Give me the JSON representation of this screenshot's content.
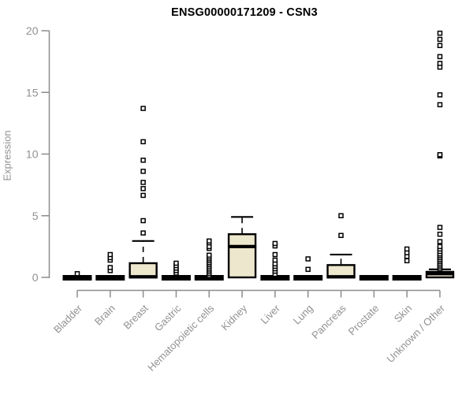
{
  "chart_data": {
    "type": "boxplot",
    "title": "ENSG00000171209 - CSN3",
    "ylabel": "Expression",
    "ylim": [
      0,
      20
    ],
    "yticks": [
      0,
      5,
      10,
      15,
      20
    ],
    "grid": false,
    "legend": "none",
    "categories": [
      "Bladder",
      "Brain",
      "Breast",
      "Gastric",
      "Hematopoietic cells",
      "Kidney",
      "Liver",
      "Lung",
      "Pancreas",
      "Prostate",
      "Skin",
      "Unknown / Other"
    ],
    "boxes": [
      {
        "category": "Bladder",
        "q1": 0,
        "median": 0,
        "q3": 0.05,
        "whisker_low": 0,
        "whisker_high": 0.05,
        "outliers": [
          0.3
        ]
      },
      {
        "category": "Brain",
        "q1": 0,
        "median": 0,
        "q3": 0.05,
        "whisker_low": 0,
        "whisker_high": 0.05,
        "outliers": [
          0.55,
          0.8,
          1.4,
          1.6,
          1.85
        ]
      },
      {
        "category": "Breast",
        "q1": 0,
        "median": 0.05,
        "q3": 1.15,
        "whisker_low": 0,
        "whisker_high": 2.95,
        "outliers": [
          3.6,
          4.6,
          6.65,
          7.2,
          7.7,
          8.6,
          9.5,
          11.0,
          13.7
        ]
      },
      {
        "category": "Gastric",
        "q1": 0,
        "median": 0,
        "q3": 0.05,
        "whisker_low": 0,
        "whisker_high": 0.05,
        "outliers": [
          0.35,
          0.55,
          0.75,
          0.95,
          1.15
        ]
      },
      {
        "category": "Hematopoietic cells",
        "q1": 0,
        "median": 0,
        "q3": 0.05,
        "whisker_low": 0,
        "whisker_high": 0.05,
        "outliers": [
          0.15,
          0.3,
          0.45,
          0.6,
          0.75,
          0.9,
          1.05,
          1.2,
          1.35,
          1.5,
          1.65,
          1.8,
          2.35,
          2.5,
          2.8,
          2.95
        ]
      },
      {
        "category": "Kidney",
        "q1": 0,
        "median": 2.5,
        "q3": 3.5,
        "whisker_low": 0,
        "whisker_high": 4.9,
        "outliers": []
      },
      {
        "category": "Liver",
        "q1": 0,
        "median": 0,
        "q3": 0.05,
        "whisker_low": 0,
        "whisker_high": 0.05,
        "outliers": [
          0.25,
          0.5,
          0.7,
          0.9,
          1.1,
          1.4,
          1.85,
          2.55,
          2.75
        ]
      },
      {
        "category": "Lung",
        "q1": 0,
        "median": 0,
        "q3": 0.05,
        "whisker_low": 0,
        "whisker_high": 0.05,
        "outliers": [
          0.65,
          1.5
        ]
      },
      {
        "category": "Pancreas",
        "q1": 0,
        "median": 0.05,
        "q3": 1.0,
        "whisker_low": 0,
        "whisker_high": 1.85,
        "outliers": [
          3.4,
          5.0
        ]
      },
      {
        "category": "Prostate",
        "q1": 0,
        "median": 0,
        "q3": 0.05,
        "whisker_low": 0,
        "whisker_high": 0.05,
        "outliers": []
      },
      {
        "category": "Skin",
        "q1": 0,
        "median": 0,
        "q3": 0.05,
        "whisker_low": 0,
        "whisker_high": 0.05,
        "outliers": [
          1.35,
          1.7,
          2.0,
          2.3
        ]
      },
      {
        "category": "Unknown / Other",
        "q1": 0,
        "median": 0.3,
        "q3": 0.45,
        "whisker_low": 0,
        "whisker_high": 0.65,
        "outliers": [
          0.7,
          0.85,
          1.0,
          1.15,
          1.3,
          1.45,
          1.6,
          1.75,
          1.9,
          2.1,
          2.3,
          2.5,
          2.9,
          3.5,
          4.05,
          9.85,
          9.95,
          14.0,
          14.8,
          17.05,
          17.35,
          17.9,
          18.8,
          19.3,
          19.8
        ]
      }
    ],
    "colors": {
      "box_fill": "#EDE7CD",
      "box_stroke": "#000000",
      "axis": "#8C8C8C",
      "tick_label": "#919191",
      "title": "#000000",
      "background": "#FFFFFF"
    }
  }
}
